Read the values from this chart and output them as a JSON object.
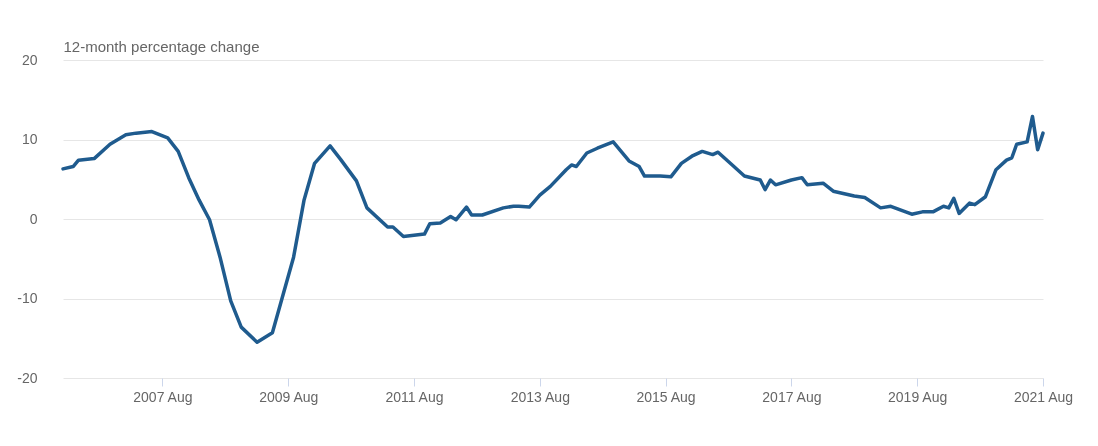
{
  "chart_data": {
    "type": "line",
    "ylabel": "12-month percentage change",
    "x": [
      "2006-01",
      "2006-03",
      "2006-04",
      "2006-07",
      "2006-10",
      "2007-01",
      "2007-03",
      "2007-06",
      "2007-09",
      "2007-11",
      "2008-01",
      "2008-03",
      "2008-05",
      "2008-07",
      "2008-09",
      "2008-11",
      "2009-02",
      "2009-05",
      "2009-09",
      "2009-11",
      "2010-01",
      "2010-04",
      "2010-06",
      "2010-09",
      "2010-11",
      "2011-03",
      "2011-04",
      "2011-06",
      "2011-10",
      "2011-11",
      "2012-01",
      "2012-03",
      "2012-04",
      "2012-06",
      "2012-07",
      "2012-09",
      "2013-01",
      "2013-03",
      "2013-04",
      "2013-06",
      "2013-08",
      "2013-10",
      "2014-01",
      "2014-02",
      "2014-03",
      "2014-05",
      "2014-07",
      "2014-10",
      "2015-01",
      "2015-03",
      "2015-04",
      "2015-07",
      "2015-09",
      "2015-11",
      "2016-01",
      "2016-03",
      "2016-05",
      "2016-06",
      "2016-09",
      "2016-11",
      "2017-02",
      "2017-03",
      "2017-04",
      "2017-05",
      "2017-08",
      "2017-10",
      "2017-11",
      "2018-02",
      "2018-04",
      "2018-08",
      "2018-10",
      "2019-01",
      "2019-03",
      "2019-07",
      "2019-09",
      "2019-11",
      "2020-01",
      "2020-02",
      "2020-03",
      "2020-04",
      "2020-06",
      "2020-07",
      "2020-09",
      "2020-11",
      "2021-01",
      "2021-02",
      "2021-03",
      "2021-05",
      "2021-06",
      "2021-07",
      "2021-08"
    ],
    "series": [
      {
        "color": "#1f5b8e",
        "values": [
          6.3,
          6.6,
          7.4,
          7.6,
          9.4,
          10.6,
          10.8,
          11.0,
          10.2,
          8.5,
          5.2,
          2.4,
          -0.1,
          -4.8,
          -10.3,
          -13.6,
          -15.5,
          -14.3,
          -4.8,
          2.4,
          7.0,
          9.2,
          7.5,
          4.8,
          1.4,
          -1.0,
          -1.0,
          -2.2,
          -1.9,
          -0.6,
          -0.5,
          0.3,
          -0.1,
          1.5,
          0.5,
          0.5,
          1.4,
          1.6,
          1.6,
          1.5,
          3.0,
          4.1,
          6.2,
          6.8,
          6.6,
          8.3,
          8.9,
          9.7,
          7.3,
          6.6,
          5.4,
          5.4,
          5.3,
          7.0,
          7.9,
          8.5,
          8.1,
          8.4,
          6.6,
          5.4,
          4.9,
          3.7,
          4.9,
          4.3,
          4.9,
          5.2,
          4.3,
          4.5,
          3.5,
          2.9,
          2.7,
          1.4,
          1.6,
          0.6,
          0.9,
          0.9,
          1.6,
          1.4,
          2.6,
          0.7,
          2.0,
          1.8,
          2.8,
          6.2,
          7.4,
          7.7,
          9.4,
          9.7,
          12.9,
          8.7,
          10.8
        ]
      }
    ],
    "xlim": [
      "2006-01",
      "2021-08"
    ],
    "xticks": [
      {
        "value": "2007-08",
        "label": "2007 Aug"
      },
      {
        "value": "2009-08",
        "label": "2009 Aug"
      },
      {
        "value": "2011-08",
        "label": "2011 Aug"
      },
      {
        "value": "2013-08",
        "label": "2013 Aug"
      },
      {
        "value": "2015-08",
        "label": "2015 Aug"
      },
      {
        "value": "2017-08",
        "label": "2017 Aug"
      },
      {
        "value": "2019-08",
        "label": "2019 Aug"
      },
      {
        "value": "2021-08",
        "label": "2021 Aug"
      }
    ],
    "ylim": [
      -20,
      20
    ],
    "yticks": [
      -20,
      -10,
      0,
      10,
      20
    ],
    "grid": "y",
    "line_style": "solid"
  }
}
